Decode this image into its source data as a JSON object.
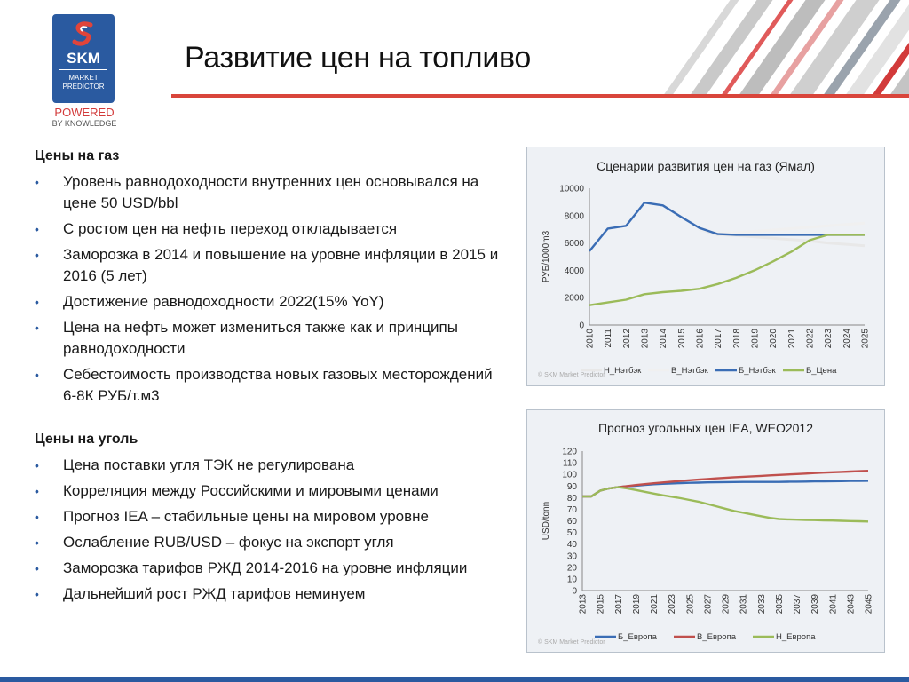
{
  "slide": {
    "title": "Развитие цен на топливо",
    "logo": {
      "brand": "SKM",
      "line1": "MARKET",
      "line2": "PREDICTOR"
    },
    "powered": {
      "line1": "POWERED",
      "line2": "BY KNOWLEDGE"
    }
  },
  "gas": {
    "heading": "Цены на газ",
    "bullets": [
      "Уровень равнодоходности внутренних цен основывался на цене 50 USD/bbl",
      "С ростом цен на нефть переход откладывается",
      "Заморозка в 2014 и повышение на уровне инфляции в 2015 и 2016 (5 лет)",
      "Достижение равнодоходности 2022(15% YoY)",
      "Цена на нефть может измениться также как и принципы равнодоходности",
      "Себестоимость производства новых  газовых месторождений 6-8К РУБ/т.м3"
    ]
  },
  "coal": {
    "heading": "Цены на уголь",
    "bullets": [
      "Цена поставки угля ТЭК не регулирована",
      "Корреляция между Российскими и мировыми ценами",
      "Прогноз IEA – стабильные цены на мировом уровне",
      "Ослабление RUB/USD – фокус на экспорт угля",
      "Заморозка тарифов РЖД 2014-2016 на уровне инфляции",
      "Дальнейший рост РЖД тарифов неминуем"
    ]
  },
  "colors": {
    "brand_blue": "#2a5aa0",
    "accent_red": "#d9453b",
    "series_blue": "#3a6db5",
    "series_green": "#9bbb59",
    "series_red": "#c0504d",
    "series_light": "#ececec"
  },
  "chart_data": [
    {
      "type": "line",
      "title": "Сценарии развития цен на газ (Ямал)",
      "ylabel": "РУБ/1000m3",
      "xlabel": "",
      "ylim": [
        0,
        10000
      ],
      "yticks": [
        0,
        2000,
        4000,
        6000,
        8000,
        10000
      ],
      "x": [
        "2010",
        "2011",
        "2012",
        "2013",
        "2014",
        "2015",
        "2016",
        "2017",
        "2018",
        "2019",
        "2020",
        "2021",
        "2022",
        "2023",
        "2024",
        "2025"
      ],
      "grid": false,
      "legend_position": "bottom",
      "watermark": "© SKM Market Predictor",
      "series": [
        {
          "name": "Н_Нэтбэк",
          "color": "#e8e8e8",
          "values": [
            null,
            null,
            null,
            null,
            null,
            null,
            7000,
            6600,
            6550,
            6450,
            6350,
            6250,
            6150,
            6000,
            5900,
            5800
          ]
        },
        {
          "name": "В_Нэтбэк",
          "color": "#f0f0f0",
          "values": [
            null,
            null,
            null,
            null,
            null,
            null,
            7000,
            6700,
            6750,
            6850,
            6950,
            7050,
            7150,
            7250,
            7350,
            7450
          ]
        },
        {
          "name": "Б_Нэтбэк",
          "color": "#3a6db5",
          "values": [
            5400,
            7050,
            7250,
            8950,
            8750,
            7900,
            7100,
            6650,
            6600,
            6600,
            6600,
            6600,
            6600,
            6600,
            6600,
            6600
          ]
        },
        {
          "name": "Б_Цена",
          "color": "#9bbb59",
          "values": [
            1450,
            1650,
            1850,
            2250,
            2400,
            2500,
            2650,
            3000,
            3450,
            4000,
            4650,
            5350,
            6200,
            6600,
            6600,
            6600
          ]
        }
      ]
    },
    {
      "type": "line",
      "title": "Прогноз угольных цен IEA, WEO2012",
      "ylabel": "USD/tonn",
      "xlabel": "",
      "ylim": [
        0,
        120
      ],
      "yticks": [
        0,
        10,
        20,
        30,
        40,
        50,
        60,
        70,
        80,
        90,
        100,
        110,
        120
      ],
      "x": [
        "2013",
        "2014",
        "2015",
        "2016",
        "2017",
        "2018",
        "2019",
        "2020",
        "2021",
        "2022",
        "2023",
        "2024",
        "2025",
        "2026",
        "2027",
        "2028",
        "2029",
        "2030",
        "2031",
        "2032",
        "2033",
        "2034",
        "2035",
        "2036",
        "2037",
        "2038",
        "2039",
        "2040",
        "2041",
        "2042",
        "2043",
        "2044",
        "2045"
      ],
      "xtick_labels": [
        "2013",
        "2015",
        "2017",
        "2019",
        "2021",
        "2023",
        "2025",
        "2027",
        "2029",
        "2031",
        "2033",
        "2035",
        "2037",
        "2039",
        "2041",
        "2043",
        "2045"
      ],
      "grid": false,
      "legend_position": "bottom",
      "watermark": "© SKM Market Predictor",
      "series": [
        {
          "name": "Б_Европа",
          "color": "#3a6db5",
          "values": [
            81,
            81,
            86,
            88,
            89,
            89.7,
            90.3,
            90.9,
            91.5,
            91.9,
            92.2,
            92.5,
            92.7,
            92.9,
            93.1,
            93.2,
            93.3,
            93.4,
            93.5,
            93.5,
            93.5,
            93.5,
            93.5,
            93.6,
            93.7,
            93.8,
            93.9,
            94,
            94.1,
            94.2,
            94.3,
            94.4,
            94.5
          ]
        },
        {
          "name": "В_Европа",
          "color": "#c0504d",
          "values": [
            81,
            81,
            86,
            88,
            89,
            89.9,
            90.8,
            91.6,
            92.3,
            93,
            93.7,
            94.3,
            94.9,
            95.5,
            96,
            96.5,
            97,
            97.5,
            97.9,
            98.3,
            98.7,
            99.1,
            99.5,
            99.9,
            100.3,
            100.7,
            101.1,
            101.5,
            101.8,
            102.1,
            102.4,
            102.7,
            103
          ]
        },
        {
          "name": "Н_Европа",
          "color": "#9bbb59",
          "values": [
            81,
            81,
            86,
            88,
            89,
            88,
            86.5,
            85,
            83.5,
            82,
            80.8,
            79.5,
            78,
            76.5,
            74.5,
            72.5,
            70.5,
            68.5,
            67,
            65.5,
            64,
            62.5,
            61.5,
            61.2,
            61,
            60.8,
            60.6,
            60.4,
            60.2,
            60,
            59.8,
            59.6,
            59.4
          ]
        }
      ]
    }
  ]
}
